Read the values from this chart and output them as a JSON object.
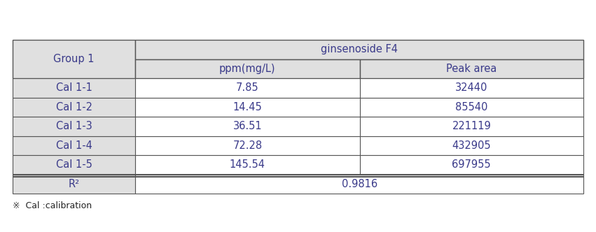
{
  "title": "ginsenoside F4",
  "col1_header": "Group 1",
  "col2_header": "ppm(mg/L)",
  "col3_header": "Peak area",
  "rows": [
    [
      "Cal 1-1",
      "7.85",
      "32440"
    ],
    [
      "Cal 1-2",
      "14.45",
      "85540"
    ],
    [
      "Cal 1-3",
      "36.51",
      "221119"
    ],
    [
      "Cal 1-4",
      "72.28",
      "432905"
    ],
    [
      "Cal 1-5",
      "145.54",
      "697955"
    ]
  ],
  "r2_label": "R²",
  "r2_value": "0.9816",
  "footnote": "※  Cal :calibration",
  "header_bg": "#e0e0e0",
  "data_bg": "#ffffff",
  "border_color": "#555555",
  "text_color": "#3a3a8a",
  "font_size": 10.5,
  "fig_width": 8.51,
  "fig_height": 3.32,
  "dpi": 100
}
